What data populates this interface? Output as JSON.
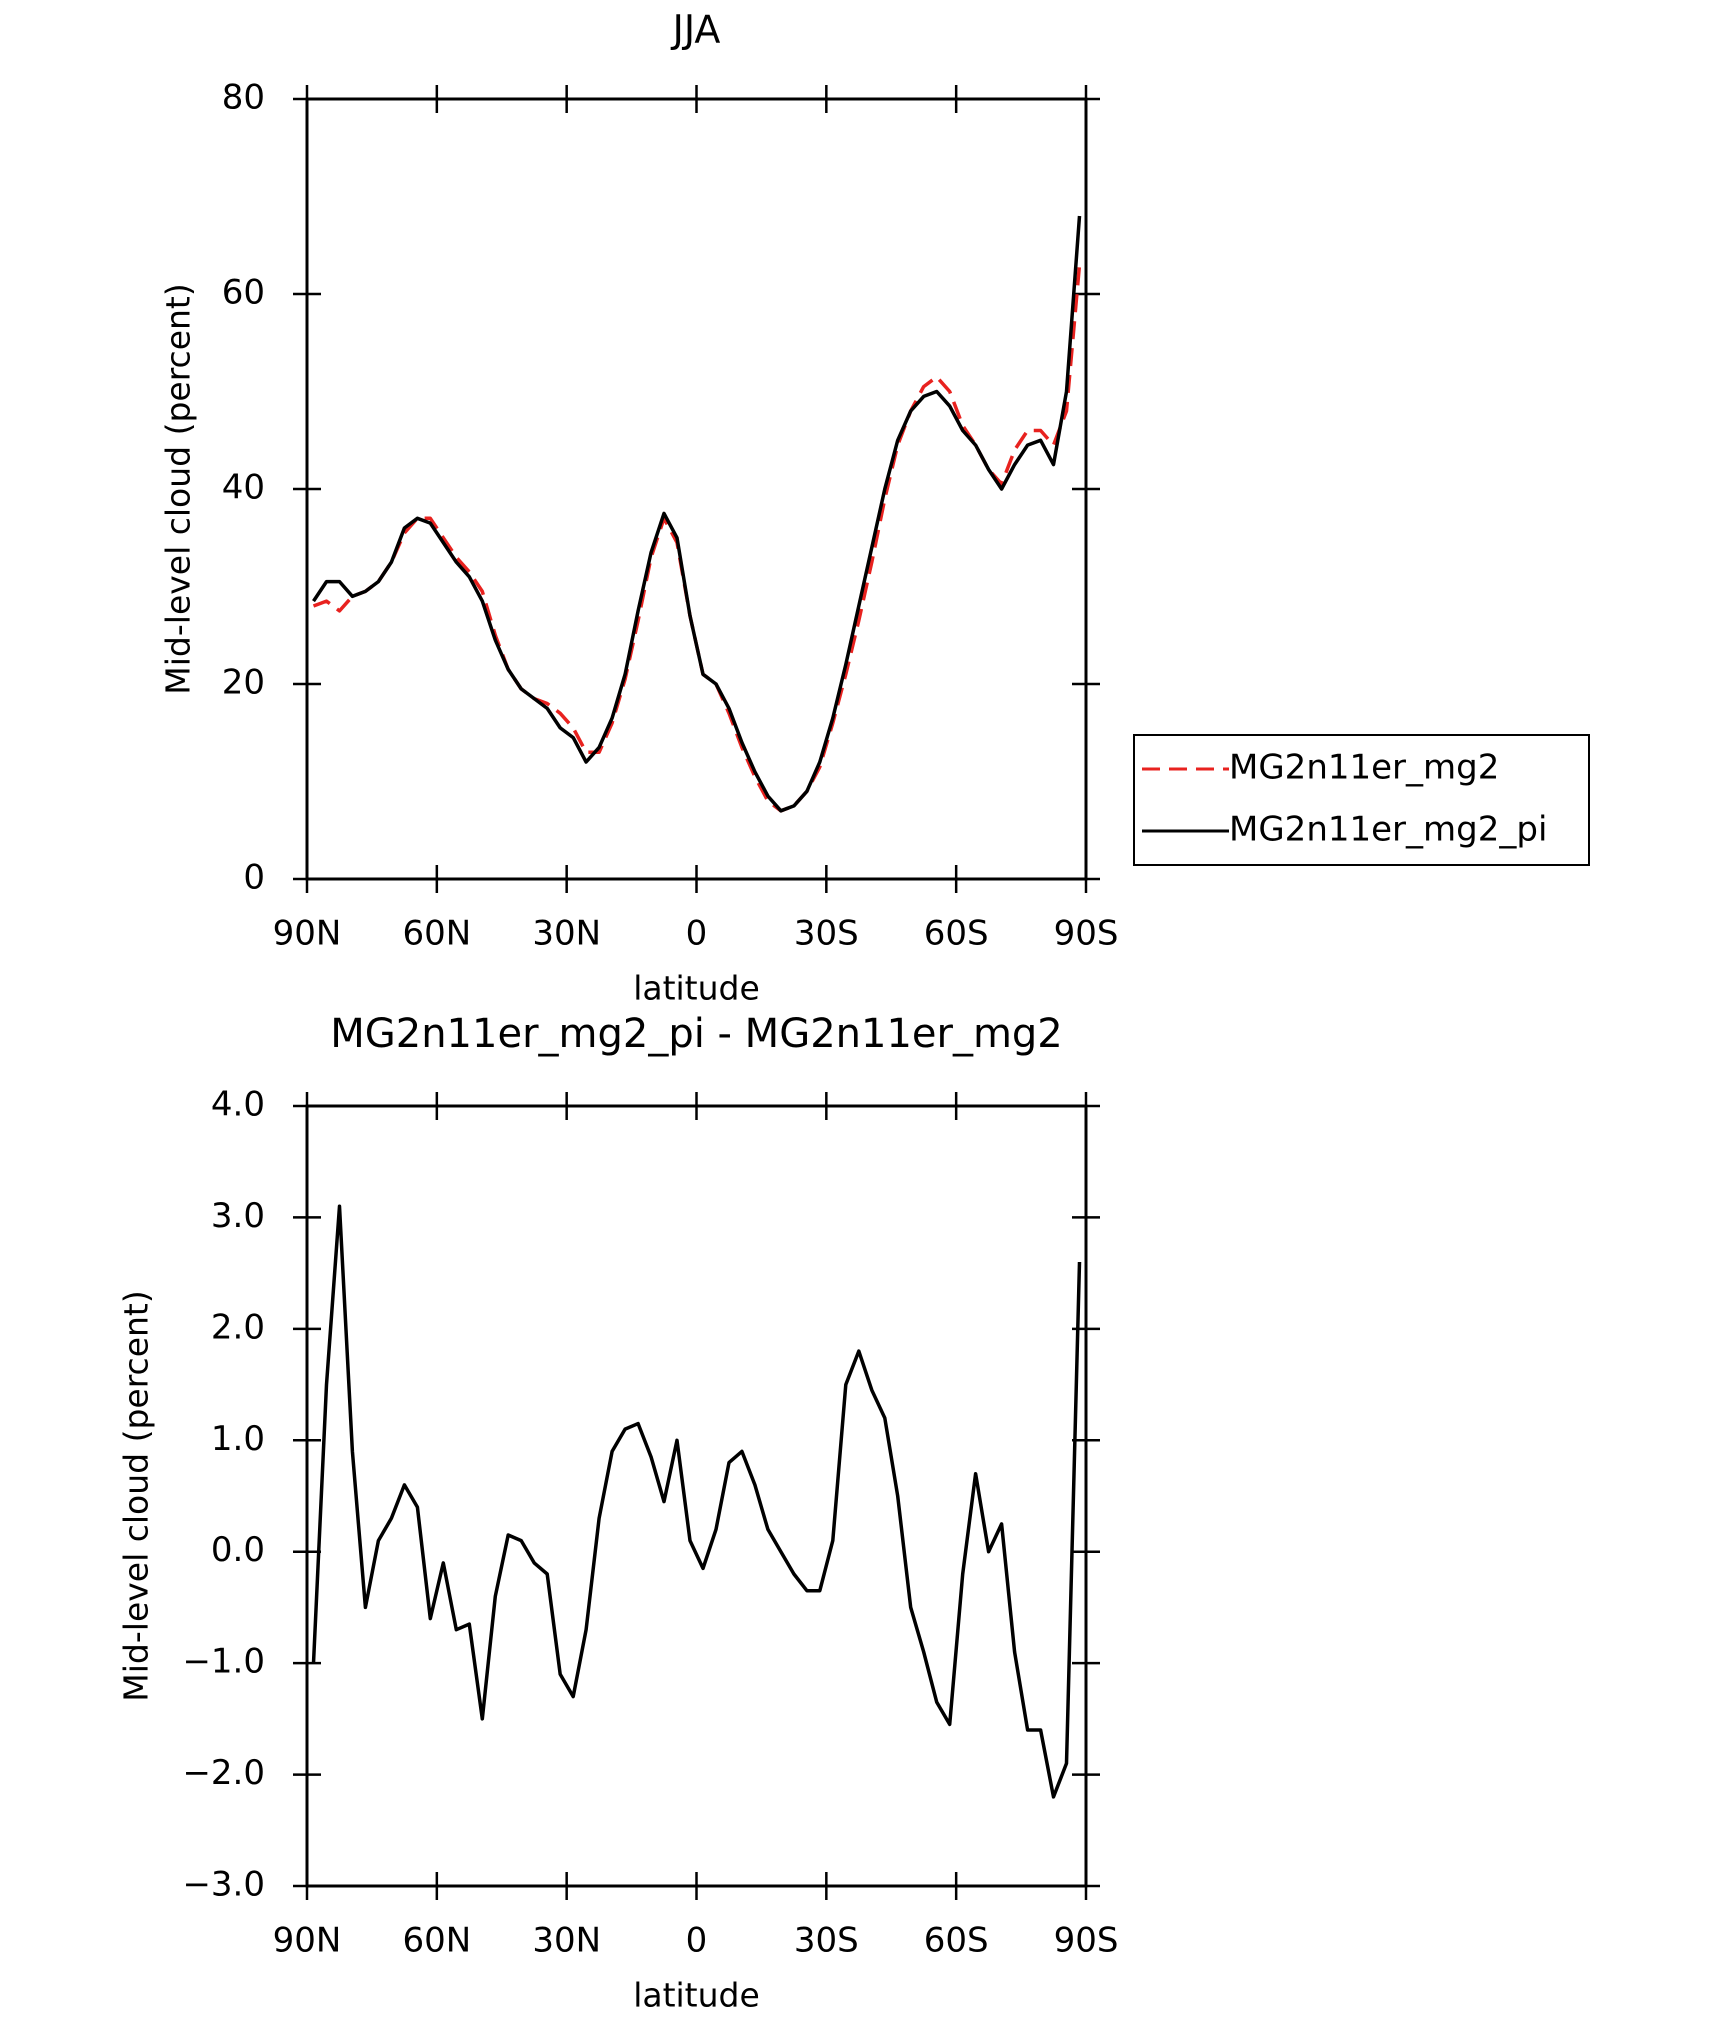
{
  "chart_data": [
    {
      "type": "line",
      "title": "JJA",
      "xlabel": "latitude",
      "ylabel": "Mid-level cloud (percent)",
      "x": [
        88.5,
        85.5,
        82.5,
        79.5,
        76.5,
        73.5,
        70.5,
        67.5,
        64.5,
        61.5,
        58.5,
        55.5,
        52.5,
        49.5,
        46.5,
        43.5,
        40.5,
        37.5,
        34.5,
        31.5,
        28.5,
        25.5,
        22.5,
        19.5,
        16.5,
        13.5,
        10.5,
        7.5,
        4.5,
        1.5,
        -1.5,
        -4.5,
        -7.5,
        -10.5,
        -13.5,
        -16.5,
        -19.5,
        -22.5,
        -25.5,
        -28.5,
        -31.5,
        -34.5,
        -37.5,
        -40.5,
        -43.5,
        -46.5,
        -49.5,
        -52.5,
        -55.5,
        -58.5,
        -61.5,
        -64.5,
        -67.5,
        -70.5,
        -73.5,
        -76.5,
        -79.5,
        -82.5,
        -85.5,
        -88.5
      ],
      "series": [
        {
          "name": "MG2n11er_mg2",
          "color": "#e8221f",
          "dash": true,
          "values": [
            28,
            28.5,
            27.5,
            29,
            29.5,
            30.5,
            32.5,
            35.5,
            37,
            37,
            35,
            33,
            31.5,
            29.5,
            25,
            21.5,
            19.5,
            18.5,
            18,
            17,
            15.5,
            13,
            13,
            16,
            20.5,
            26.5,
            33,
            37,
            34.5,
            27,
            21,
            20,
            17,
            13.5,
            10.5,
            8,
            7,
            7.5,
            9,
            11.5,
            16,
            21,
            26.5,
            32.5,
            39,
            44.5,
            48,
            50.5,
            51.5,
            50,
            46.5,
            44.5,
            42,
            40.5,
            44,
            46,
            46,
            44.5,
            48,
            63
          ]
        },
        {
          "name": "MG2n11er_mg2_pi",
          "color": "#000000",
          "dash": false,
          "values": [
            28.5,
            30.5,
            30.5,
            29,
            29.5,
            30.5,
            32.5,
            36,
            37,
            36.5,
            34.5,
            32.5,
            31,
            28.5,
            24.5,
            21.5,
            19.5,
            18.5,
            17.5,
            15.5,
            14.5,
            12,
            13.5,
            16.5,
            21,
            27.5,
            33.5,
            37.5,
            35,
            27,
            21,
            20,
            17.5,
            14,
            11,
            8.5,
            7,
            7.5,
            9,
            12,
            16.5,
            22,
            28,
            34,
            40,
            45,
            48,
            49.5,
            50,
            48.5,
            46,
            44.5,
            42,
            40,
            42.5,
            44.5,
            45,
            42.5,
            50,
            68
          ]
        }
      ],
      "xlim": [
        90,
        -90
      ],
      "xticks": [
        {
          "value": 90,
          "label": "90N"
        },
        {
          "value": 60,
          "label": "60N"
        },
        {
          "value": 30,
          "label": "30N"
        },
        0,
        {
          "value": -30,
          "label": "30S"
        },
        {
          "value": -60,
          "label": "60S"
        },
        {
          "value": -90,
          "label": "90S"
        }
      ],
      "ylim": [
        0,
        80
      ],
      "yticks": [
        0,
        20,
        40,
        60,
        80
      ],
      "legend": "right"
    },
    {
      "type": "line",
      "title": "MG2n11er_mg2_pi - MG2n11er_mg2",
      "xlabel": "latitude",
      "ylabel": "Mid-level cloud (percent)",
      "x": [
        88.5,
        85.5,
        82.5,
        79.5,
        76.5,
        73.5,
        70.5,
        67.5,
        64.5,
        61.5,
        58.5,
        55.5,
        52.5,
        49.5,
        46.5,
        43.5,
        40.5,
        37.5,
        34.5,
        31.5,
        28.5,
        25.5,
        22.5,
        19.5,
        16.5,
        13.5,
        10.5,
        7.5,
        4.5,
        1.5,
        -1.5,
        -4.5,
        -7.5,
        -10.5,
        -13.5,
        -16.5,
        -19.5,
        -22.5,
        -25.5,
        -28.5,
        -31.5,
        -34.5,
        -37.5,
        -40.5,
        -43.5,
        -46.5,
        -49.5,
        -52.5,
        -55.5,
        -58.5,
        -61.5,
        -64.5,
        -67.5,
        -70.5,
        -73.5,
        -76.5,
        -79.5,
        -82.5,
        -85.5,
        -88.5
      ],
      "series": [
        {
          "color": "#000000",
          "dash": false,
          "values": [
            -1.0,
            1.5,
            3.1,
            0.9,
            -0.5,
            0.1,
            0.3,
            0.6,
            0.4,
            -0.6,
            -0.1,
            -0.7,
            -0.65,
            -1.5,
            -0.4,
            0.15,
            0.1,
            -0.1,
            -0.2,
            -1.1,
            -1.3,
            -0.7,
            0.3,
            0.9,
            1.1,
            1.15,
            0.85,
            0.45,
            1.0,
            0.1,
            -0.15,
            0.2,
            0.8,
            0.9,
            0.6,
            0.2,
            0.0,
            -0.2,
            -0.35,
            -0.35,
            0.1,
            1.5,
            1.8,
            1.45,
            1.2,
            0.5,
            -0.5,
            -0.9,
            -1.35,
            -1.55,
            -0.2,
            0.7,
            0.0,
            0.25,
            -0.9,
            -1.6,
            -1.6,
            -2.2,
            -1.9,
            2.6
          ]
        }
      ],
      "xlim": [
        90,
        -90
      ],
      "xticks": [
        {
          "value": 90,
          "label": "90N"
        },
        {
          "value": 60,
          "label": "60N"
        },
        {
          "value": 30,
          "label": "30N"
        },
        0,
        {
          "value": -30,
          "label": "30S"
        },
        {
          "value": -60,
          "label": "60S"
        },
        {
          "value": -90,
          "label": "90S"
        }
      ],
      "ylim": [
        -3,
        4
      ],
      "yticks": [
        {
          "value": -3,
          "label": "−3.0"
        },
        {
          "value": -2,
          "label": "−2.0"
        },
        {
          "value": -1,
          "label": "−1.0"
        },
        {
          "value": 0,
          "label": "0.0"
        },
        {
          "value": 1,
          "label": "1.0"
        },
        {
          "value": 2,
          "label": "2.0"
        },
        {
          "value": 3,
          "label": "3.0"
        },
        {
          "value": 4,
          "label": "4.0"
        }
      ]
    }
  ]
}
